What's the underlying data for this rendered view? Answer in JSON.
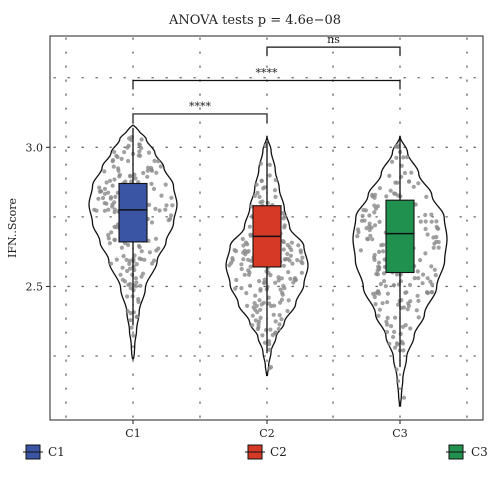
{
  "chart_data": {
    "type": "violin",
    "title": "ANOVA tests p = 4.6e−08",
    "xlabel": "",
    "ylabel": "IFN..Score",
    "ylim": [
      2.02,
      3.4
    ],
    "y_ticks": [
      2.5,
      3.0
    ],
    "y_tick_labels": [
      "2.5",
      "3.0"
    ],
    "grid": "dotted",
    "legend_position": "bottom",
    "categories": [
      "C1",
      "C2",
      "C3"
    ],
    "series": [
      {
        "name": "C1",
        "color": "#3a55a4",
        "violin_min": 2.24,
        "violin_max": 3.08,
        "box": {
          "q1": 2.66,
          "median": 2.775,
          "q3": 2.87,
          "whisker_low": 2.36,
          "whisker_high": 3.07
        }
      },
      {
        "name": "C2",
        "color": "#d63a26",
        "violin_min": 2.18,
        "violin_max": 3.04,
        "box": {
          "q1": 2.57,
          "median": 2.68,
          "q3": 2.79,
          "whisker_low": 2.26,
          "whisker_high": 3.02
        },
        "outliers": [
          2.21
        ]
      },
      {
        "name": "C3",
        "color": "#219150",
        "violin_min": 2.07,
        "violin_max": 3.04,
        "box": {
          "q1": 2.55,
          "median": 2.69,
          "q3": 2.81,
          "whisker_low": 2.21,
          "whisker_high": 3.04
        },
        "outliers": [
          2.1
        ]
      }
    ],
    "comparisons": [
      {
        "from": "C2",
        "to": "C3",
        "label": "ns",
        "y": 3.36
      },
      {
        "from": "C1",
        "to": "C3",
        "label": "****",
        "y": 3.24
      },
      {
        "from": "C1",
        "to": "C2",
        "label": "****",
        "y": 3.12
      }
    ]
  }
}
